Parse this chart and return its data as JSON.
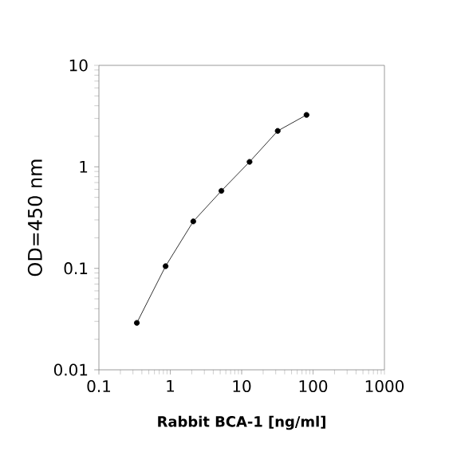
{
  "chart_data": {
    "type": "line",
    "xlabel": "Rabbit BCA-1 [ng/ml]",
    "ylabel": "OD=450 nm",
    "x": [
      0.34,
      0.86,
      2.1,
      5.2,
      12.9,
      32,
      81
    ],
    "series": [
      {
        "color": "#000000",
        "values": [
          0.029,
          0.105,
          0.29,
          0.58,
          1.12,
          2.26,
          3.25
        ]
      }
    ],
    "log": "xy",
    "marker": "circle",
    "line_style": "solid",
    "grid": false,
    "xlim": [
      0.1,
      1000
    ],
    "ylim": [
      0.01,
      10
    ],
    "xticks": [
      0.1,
      1,
      10,
      100,
      1000
    ],
    "yticks": [
      0.01,
      0.1,
      1,
      10
    ]
  }
}
